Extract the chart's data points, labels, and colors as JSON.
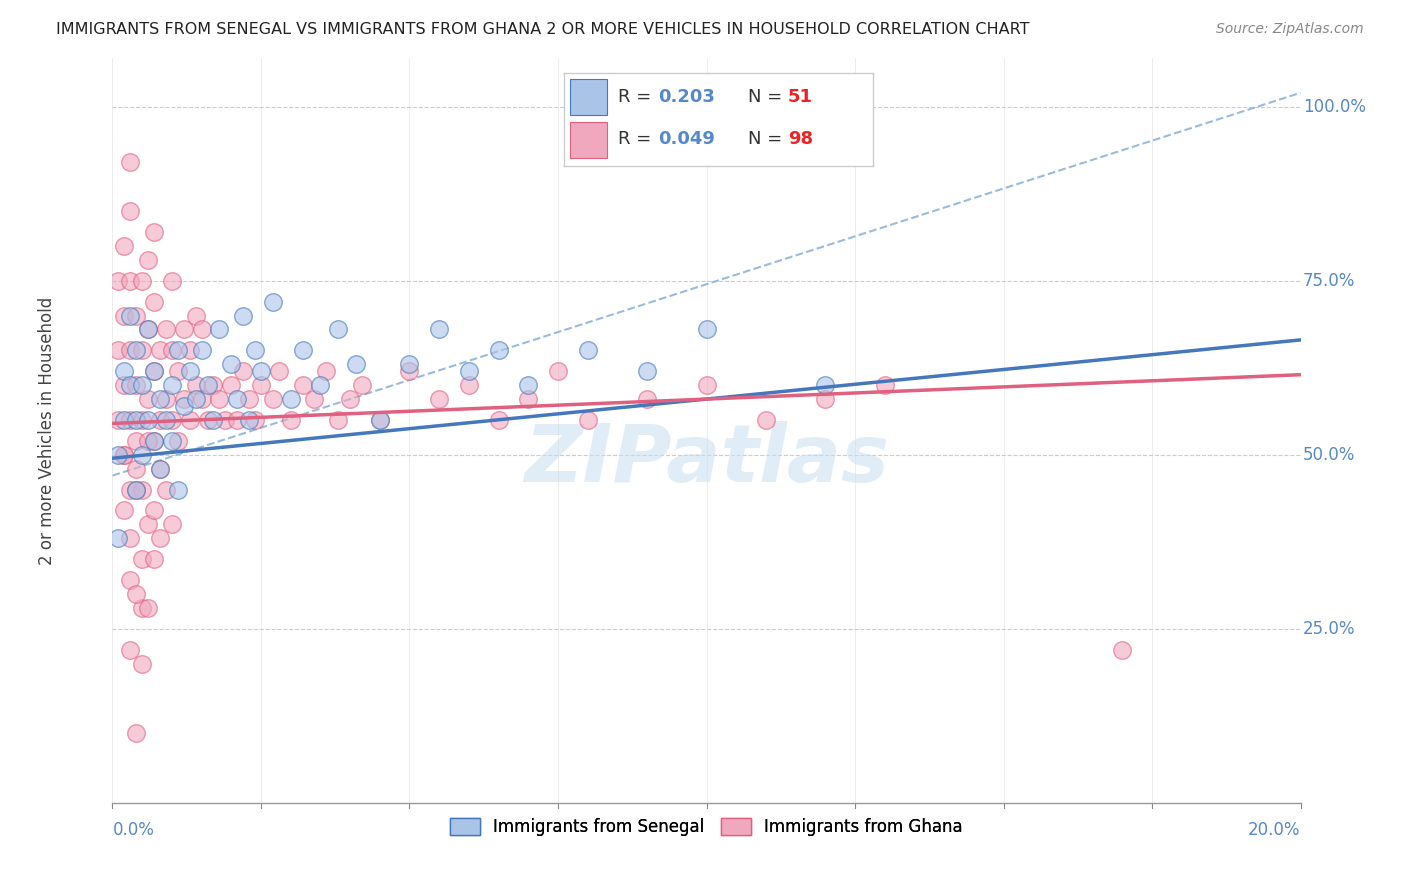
{
  "title": "IMMIGRANTS FROM SENEGAL VS IMMIGRANTS FROM GHANA 2 OR MORE VEHICLES IN HOUSEHOLD CORRELATION CHART",
  "source": "Source: ZipAtlas.com",
  "xlabel_bottom_left": "0.0%",
  "xlabel_bottom_right": "20.0%",
  "xmin": 0.0,
  "xmax": 0.2,
  "ymin": 0.0,
  "ymax": 1.07,
  "yticks": [
    0.25,
    0.5,
    0.75,
    1.0
  ],
  "ytick_labels": [
    "25.0%",
    "50.0%",
    "75.0%",
    "100.0%"
  ],
  "color_senegal": "#aac4e8",
  "color_ghana": "#f0a8be",
  "color_senegal_line": "#4477bb",
  "color_ghana_line": "#e06080",
  "color_ref_line": "#99bbdd",
  "color_axis_label": "#5588cc",
  "color_r_value": "#5588cc",
  "color_n_value": "#ee2222",
  "color_grid": "#cccccc",
  "watermark": "ZIPatlas",
  "legend_box_color": "#dddddd",
  "ref_line_x": [
    0.0,
    0.2
  ],
  "ref_line_y": [
    0.47,
    1.02
  ],
  "senegal_trend_x": [
    0.0,
    0.2
  ],
  "senegal_trend_y": [
    0.495,
    0.665
  ],
  "ghana_trend_x": [
    0.0,
    0.2
  ],
  "ghana_trend_y": [
    0.545,
    0.615
  ],
  "senegal_x": [
    0.001,
    0.001,
    0.002,
    0.002,
    0.003,
    0.003,
    0.004,
    0.004,
    0.004,
    0.005,
    0.005,
    0.006,
    0.006,
    0.007,
    0.007,
    0.008,
    0.008,
    0.009,
    0.01,
    0.01,
    0.011,
    0.011,
    0.012,
    0.013,
    0.014,
    0.015,
    0.016,
    0.017,
    0.018,
    0.02,
    0.021,
    0.022,
    0.023,
    0.024,
    0.025,
    0.027,
    0.03,
    0.032,
    0.035,
    0.038,
    0.041,
    0.045,
    0.05,
    0.055,
    0.06,
    0.065,
    0.07,
    0.08,
    0.09,
    0.1,
    0.12
  ],
  "senegal_y": [
    0.5,
    0.38,
    0.62,
    0.55,
    0.7,
    0.6,
    0.55,
    0.45,
    0.65,
    0.5,
    0.6,
    0.55,
    0.68,
    0.52,
    0.62,
    0.58,
    0.48,
    0.55,
    0.6,
    0.52,
    0.45,
    0.65,
    0.57,
    0.62,
    0.58,
    0.65,
    0.6,
    0.55,
    0.68,
    0.63,
    0.58,
    0.7,
    0.55,
    0.65,
    0.62,
    0.72,
    0.58,
    0.65,
    0.6,
    0.68,
    0.63,
    0.55,
    0.63,
    0.68,
    0.62,
    0.65,
    0.6,
    0.65,
    0.62,
    0.68,
    0.6
  ],
  "ghana_x": [
    0.001,
    0.001,
    0.001,
    0.002,
    0.002,
    0.002,
    0.002,
    0.003,
    0.003,
    0.003,
    0.003,
    0.003,
    0.004,
    0.004,
    0.004,
    0.005,
    0.005,
    0.005,
    0.005,
    0.006,
    0.006,
    0.006,
    0.007,
    0.007,
    0.007,
    0.007,
    0.008,
    0.008,
    0.008,
    0.009,
    0.009,
    0.01,
    0.01,
    0.01,
    0.011,
    0.011,
    0.012,
    0.012,
    0.013,
    0.013,
    0.014,
    0.014,
    0.015,
    0.015,
    0.016,
    0.017,
    0.018,
    0.019,
    0.02,
    0.021,
    0.022,
    0.023,
    0.024,
    0.025,
    0.027,
    0.028,
    0.03,
    0.032,
    0.034,
    0.036,
    0.038,
    0.04,
    0.042,
    0.045,
    0.05,
    0.055,
    0.06,
    0.065,
    0.07,
    0.075,
    0.08,
    0.09,
    0.1,
    0.11,
    0.12,
    0.13,
    0.002,
    0.003,
    0.004,
    0.005,
    0.006,
    0.007,
    0.008,
    0.009,
    0.01,
    0.003,
    0.005,
    0.007,
    0.004,
    0.006,
    0.002,
    0.004,
    0.006,
    0.003,
    0.005,
    0.17,
    0.003,
    0.004
  ],
  "ghana_y": [
    0.55,
    0.65,
    0.75,
    0.6,
    0.7,
    0.8,
    0.5,
    0.55,
    0.65,
    0.75,
    0.85,
    0.45,
    0.6,
    0.7,
    0.52,
    0.55,
    0.65,
    0.75,
    0.45,
    0.58,
    0.68,
    0.78,
    0.52,
    0.62,
    0.72,
    0.82,
    0.55,
    0.65,
    0.48,
    0.58,
    0.68,
    0.55,
    0.65,
    0.75,
    0.52,
    0.62,
    0.58,
    0.68,
    0.55,
    0.65,
    0.6,
    0.7,
    0.58,
    0.68,
    0.55,
    0.6,
    0.58,
    0.55,
    0.6,
    0.55,
    0.62,
    0.58,
    0.55,
    0.6,
    0.58,
    0.62,
    0.55,
    0.6,
    0.58,
    0.62,
    0.55,
    0.58,
    0.6,
    0.55,
    0.62,
    0.58,
    0.6,
    0.55,
    0.58,
    0.62,
    0.55,
    0.58,
    0.6,
    0.55,
    0.58,
    0.6,
    0.42,
    0.38,
    0.45,
    0.35,
    0.4,
    0.42,
    0.38,
    0.45,
    0.4,
    0.32,
    0.28,
    0.35,
    0.3,
    0.28,
    0.5,
    0.48,
    0.52,
    0.22,
    0.2,
    0.22,
    0.92,
    0.1
  ]
}
